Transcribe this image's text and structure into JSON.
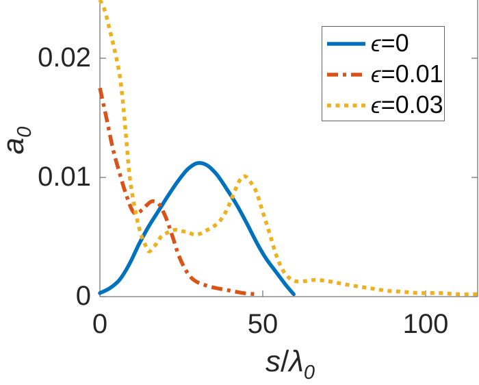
{
  "figure": {
    "background": "#ffffff",
    "axis_color": "#767676",
    "text_color": "#262626"
  },
  "axes": {
    "xlabel": {
      "var": "s",
      "slash": "/",
      "greek": "λ",
      "sub": "0"
    },
    "ylabel": {
      "var": "a",
      "sub": "0"
    },
    "x": {
      "ticks": [
        {
          "value": 0,
          "label": "0"
        },
        {
          "value": 50,
          "label": "50"
        },
        {
          "value": 100,
          "label": "100"
        }
      ]
    },
    "y": {
      "ticks": [
        {
          "value": 0,
          "label": "0"
        },
        {
          "value": 0.01,
          "label": "0.01"
        },
        {
          "value": 0.02,
          "label": "0.02"
        }
      ]
    }
  },
  "chart_data": {
    "type": "line",
    "title": "",
    "xlabel": "s/lambda_0",
    "ylabel": "a_0",
    "xlim": [
      0,
      116
    ],
    "ylim": [
      0,
      0.025
    ],
    "x_ticks": [
      0,
      50,
      100
    ],
    "y_ticks": [
      0,
      0.01,
      0.02
    ],
    "grid": false,
    "legend_position": "upper-right-inside",
    "series": [
      {
        "name": "epsilon=0",
        "label_symbol": "ϵ",
        "label_rest": "=0",
        "color": "#0072BD",
        "line_style": "solid",
        "x": [
          0,
          3,
          6,
          9,
          12,
          15,
          18,
          21,
          24,
          27,
          30,
          33,
          36,
          39,
          42,
          45,
          48,
          51,
          54,
          57,
          59.5
        ],
        "y": [
          0.0003,
          0.0007,
          0.0014,
          0.0027,
          0.0044,
          0.0059,
          0.0072,
          0.0085,
          0.0097,
          0.0107,
          0.0112,
          0.011,
          0.0102,
          0.009,
          0.0077,
          0.0062,
          0.0046,
          0.0032,
          0.0021,
          0.001,
          0.0002
        ]
      },
      {
        "name": "epsilon=0.01",
        "label_symbol": "ϵ",
        "label_rest": "=0.01",
        "color": "#D95319",
        "line_style": "dashdot",
        "x": [
          0,
          2,
          4,
          6,
          8,
          10,
          11.5,
          13,
          14.5,
          16,
          18,
          20,
          22,
          24,
          26,
          28,
          30,
          33,
          36,
          40,
          44,
          48
        ],
        "y": [
          0.0175,
          0.015,
          0.0124,
          0.0104,
          0.0086,
          0.0072,
          0.007,
          0.0073,
          0.0077,
          0.008,
          0.0078,
          0.0068,
          0.0053,
          0.0036,
          0.0024,
          0.0016,
          0.0012,
          0.0009,
          0.0007,
          0.0005,
          0.0003,
          0.0002
        ]
      },
      {
        "name": "epsilon=0.03",
        "label_symbol": "ϵ",
        "label_rest": "=0.03",
        "color": "#EDB120",
        "line_style": "dotted",
        "x": [
          0,
          1.5,
          3,
          4.5,
          6,
          7,
          8,
          9,
          10,
          11,
          12,
          13,
          14,
          15,
          16,
          17.5,
          19,
          21,
          23,
          25,
          27,
          29,
          31,
          33,
          35,
          37,
          39,
          41,
          43,
          44.5,
          46,
          48,
          50,
          52,
          54,
          56,
          58,
          60,
          63,
          66,
          70,
          74,
          78,
          83,
          88,
          93,
          98,
          104,
          110,
          116
        ],
        "y": [
          0.0249,
          0.024,
          0.0224,
          0.0207,
          0.0187,
          0.0165,
          0.0135,
          0.0104,
          0.0085,
          0.007,
          0.0058,
          0.0049,
          0.0043,
          0.0038,
          0.004,
          0.0045,
          0.0051,
          0.0054,
          0.0056,
          0.0055,
          0.0054,
          0.0052,
          0.0053,
          0.0056,
          0.0059,
          0.0064,
          0.0073,
          0.0086,
          0.0098,
          0.0101,
          0.0097,
          0.0088,
          0.0071,
          0.0054,
          0.0036,
          0.0023,
          0.0016,
          0.0013,
          0.0013,
          0.0014,
          0.0013,
          0.0011,
          0.0009,
          0.0007,
          0.0005,
          0.0004,
          0.0003,
          0.0003,
          0.0002,
          0.0002
        ]
      }
    ]
  }
}
